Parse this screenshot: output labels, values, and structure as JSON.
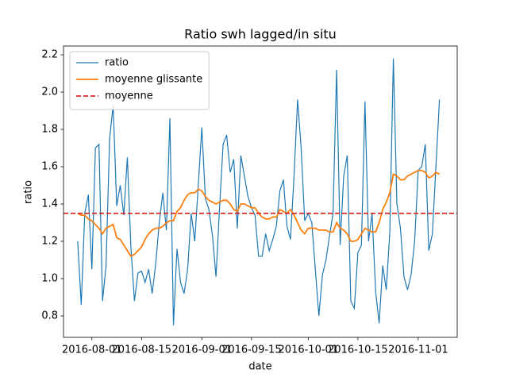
{
  "chart_data": {
    "type": "line",
    "title": "Ratio swh lagged/in situ",
    "x_label": "date",
    "y_label": "ratio",
    "x": [
      "2016-07-28",
      "2016-07-29",
      "2016-07-30",
      "2016-07-31",
      "2016-08-01",
      "2016-08-02",
      "2016-08-03",
      "2016-08-04",
      "2016-08-05",
      "2016-08-06",
      "2016-08-07",
      "2016-08-08",
      "2016-08-09",
      "2016-08-10",
      "2016-08-11",
      "2016-08-12",
      "2016-08-13",
      "2016-08-14",
      "2016-08-15",
      "2016-08-16",
      "2016-08-17",
      "2016-08-18",
      "2016-08-19",
      "2016-08-20",
      "2016-08-21",
      "2016-08-22",
      "2016-08-23",
      "2016-08-24",
      "2016-08-25",
      "2016-08-26",
      "2016-08-27",
      "2016-08-28",
      "2016-08-29",
      "2016-08-30",
      "2016-08-31",
      "2016-09-01",
      "2016-09-02",
      "2016-09-03",
      "2016-09-04",
      "2016-09-05",
      "2016-09-06",
      "2016-09-07",
      "2016-09-08",
      "2016-09-09",
      "2016-09-10",
      "2016-09-11",
      "2016-09-12",
      "2016-09-13",
      "2016-09-14",
      "2016-09-15",
      "2016-09-16",
      "2016-09-17",
      "2016-09-18",
      "2016-09-19",
      "2016-09-20",
      "2016-09-21",
      "2016-09-22",
      "2016-09-23",
      "2016-09-24",
      "2016-09-25",
      "2016-09-26",
      "2016-09-27",
      "2016-09-28",
      "2016-09-29",
      "2016-09-30",
      "2016-10-01",
      "2016-10-02",
      "2016-10-03",
      "2016-10-04",
      "2016-10-05",
      "2016-10-06",
      "2016-10-07",
      "2016-10-08",
      "2016-10-09",
      "2016-10-10",
      "2016-10-11",
      "2016-10-12",
      "2016-10-13",
      "2016-10-14",
      "2016-10-15",
      "2016-10-16",
      "2016-10-17",
      "2016-10-18",
      "2016-10-19",
      "2016-10-20",
      "2016-10-21",
      "2016-10-22",
      "2016-10-23",
      "2016-10-24",
      "2016-10-25",
      "2016-10-26",
      "2016-10-27",
      "2016-10-28",
      "2016-10-29",
      "2016-10-30",
      "2016-10-31",
      "2016-11-01",
      "2016-11-02",
      "2016-11-03",
      "2016-11-04",
      "2016-11-05",
      "2016-11-06",
      "2016-11-07"
    ],
    "series": [
      {
        "name": "ratio",
        "color": "#1f77b4",
        "values": [
          1.2,
          0.86,
          1.35,
          1.45,
          1.05,
          1.7,
          1.72,
          0.88,
          1.07,
          1.75,
          1.93,
          1.39,
          1.5,
          1.34,
          1.65,
          1.17,
          0.88,
          1.03,
          1.04,
          0.98,
          1.05,
          0.92,
          1.08,
          1.3,
          1.46,
          1.26,
          1.86,
          0.75,
          1.16,
          0.98,
          0.92,
          1.05,
          1.35,
          1.2,
          1.5,
          1.81,
          1.43,
          1.37,
          1.23,
          1.01,
          1.38,
          1.72,
          1.77,
          1.57,
          1.64,
          1.27,
          1.66,
          1.55,
          1.44,
          1.38,
          1.34,
          1.12,
          1.12,
          1.24,
          1.15,
          1.21,
          1.28,
          1.47,
          1.53,
          1.28,
          1.21,
          1.55,
          1.96,
          1.7,
          1.31,
          1.35,
          1.3,
          1.05,
          0.8,
          1.02,
          1.1,
          1.23,
          1.35,
          2.12,
          1.18,
          1.55,
          1.66,
          0.88,
          0.84,
          1.14,
          1.18,
          1.95,
          1.2,
          1.35,
          0.93,
          0.76,
          1.07,
          0.94,
          1.25,
          2.18,
          1.4,
          1.27,
          1.01,
          0.94,
          1.02,
          1.2,
          1.58,
          1.6,
          1.72,
          1.15,
          1.24,
          1.6,
          1.96
        ]
      },
      {
        "name": "moyenne glissante",
        "color": "#ff7f0e",
        "values": [
          1.35,
          1.34,
          1.34,
          1.32,
          1.31,
          1.29,
          1.27,
          1.24,
          1.27,
          1.28,
          1.29,
          1.22,
          1.21,
          1.18,
          1.15,
          1.12,
          1.13,
          1.15,
          1.17,
          1.21,
          1.24,
          1.26,
          1.27,
          1.27,
          1.28,
          1.3,
          1.31,
          1.31,
          1.36,
          1.38,
          1.42,
          1.45,
          1.46,
          1.46,
          1.48,
          1.47,
          1.44,
          1.42,
          1.41,
          1.4,
          1.41,
          1.42,
          1.42,
          1.4,
          1.37,
          1.36,
          1.4,
          1.4,
          1.39,
          1.38,
          1.38,
          1.35,
          1.33,
          1.32,
          1.32,
          1.33,
          1.33,
          1.37,
          1.36,
          1.35,
          1.37,
          1.34,
          1.3,
          1.26,
          1.24,
          1.27,
          1.27,
          1.27,
          1.26,
          1.26,
          1.26,
          1.25,
          1.25,
          1.3,
          1.27,
          1.26,
          1.24,
          1.2,
          1.2,
          1.21,
          1.24,
          1.27,
          1.26,
          1.25,
          1.25,
          1.3,
          1.37,
          1.41,
          1.46,
          1.56,
          1.55,
          1.53,
          1.53,
          1.55,
          1.56,
          1.57,
          1.58,
          1.58,
          1.57,
          1.54,
          1.55,
          1.57,
          1.56
        ]
      }
    ],
    "hlines": [
      {
        "name": "moyenne",
        "value": 1.35,
        "color": "#d62728",
        "style": "dashed"
      }
    ],
    "xlim": [
      "2016-07-24",
      "2016-11-12"
    ],
    "xticks": [
      "2016-08-01",
      "2016-08-15",
      "2016-09-01",
      "2016-09-15",
      "2016-10-01",
      "2016-10-15",
      "2016-11-01"
    ],
    "ylim": [
      0.685,
      2.247
    ],
    "yticks": [
      0.8,
      {
        "value": 1,
        "label": "1.0"
      },
      1.2,
      1.4,
      1.6,
      1.8,
      {
        "value": 2,
        "label": "2.0"
      },
      2.2
    ],
    "legend": "upper left",
    "grid": false
  }
}
